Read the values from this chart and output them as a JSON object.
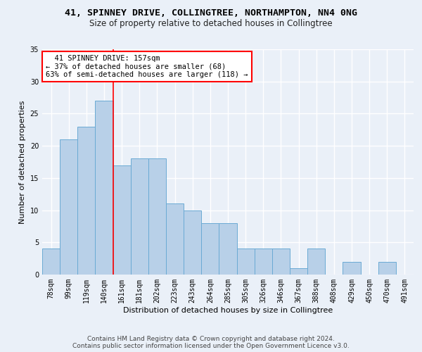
{
  "title_line1": "41, SPINNEY DRIVE, COLLINGTREE, NORTHAMPTON, NN4 0NG",
  "title_line2": "Size of property relative to detached houses in Collingtree",
  "xlabel": "Distribution of detached houses by size in Collingtree",
  "ylabel": "Number of detached properties",
  "categories": [
    "78sqm",
    "99sqm",
    "119sqm",
    "140sqm",
    "161sqm",
    "181sqm",
    "202sqm",
    "223sqm",
    "243sqm",
    "264sqm",
    "285sqm",
    "305sqm",
    "326sqm",
    "346sqm",
    "367sqm",
    "388sqm",
    "408sqm",
    "429sqm",
    "450sqm",
    "470sqm",
    "491sqm"
  ],
  "values": [
    4,
    21,
    23,
    27,
    17,
    18,
    18,
    11,
    10,
    8,
    8,
    4,
    4,
    4,
    1,
    4,
    0,
    2,
    0,
    2,
    0
  ],
  "bar_color": "#b8d0e8",
  "bar_edge_color": "#6aaad4",
  "reference_line_x": 3.5,
  "annotation_text": "  41 SPINNEY DRIVE: 157sqm\n← 37% of detached houses are smaller (68)\n63% of semi-detached houses are larger (118) →",
  "annotation_box_color": "white",
  "annotation_box_edge_color": "red",
  "ylim": [
    0,
    35
  ],
  "yticks": [
    0,
    5,
    10,
    15,
    20,
    25,
    30,
    35
  ],
  "background_color": "#eaf0f8",
  "grid_color": "white",
  "footer_line1": "Contains HM Land Registry data © Crown copyright and database right 2024.",
  "footer_line2": "Contains public sector information licensed under the Open Government Licence v3.0.",
  "title_fontsize": 9.5,
  "subtitle_fontsize": 8.5,
  "axis_label_fontsize": 8,
  "tick_fontsize": 7,
  "annotation_fontsize": 7.5,
  "footer_fontsize": 6.5
}
